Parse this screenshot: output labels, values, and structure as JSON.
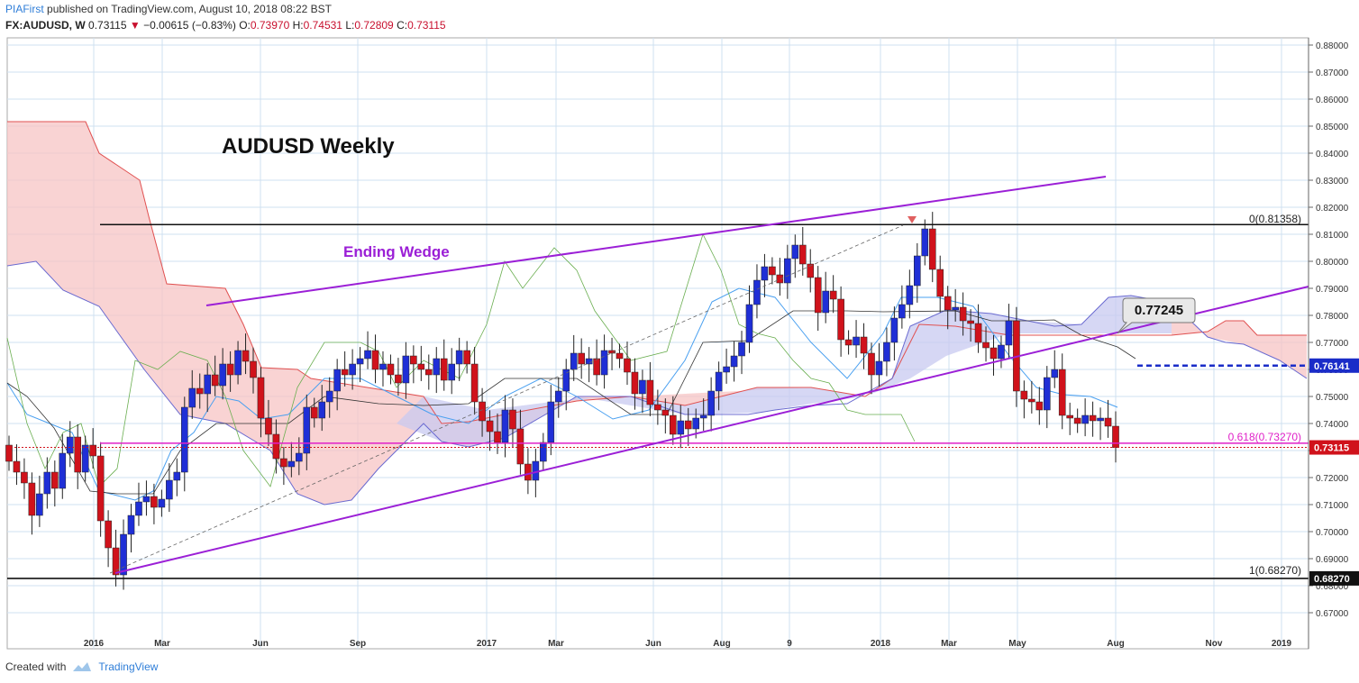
{
  "header": {
    "author": "PIAFirst",
    "published": "published on TradingView.com, August 10, 2018 08:22 BST",
    "symbol": "FX:AUDUSD, W",
    "last": "0.73115",
    "change": "−0.00615 (−0.83%)",
    "open_label": "O:",
    "open": "0.73970",
    "high_label": "H:",
    "high": "0.74531",
    "low_label": "L:",
    "low": "0.72809",
    "close_label": "C:",
    "close": "0.73115"
  },
  "footer": {
    "created_with": "Created with",
    "brand": "TradingView"
  },
  "colors": {
    "bull": "#1f2fd6",
    "bear": "#d0121b",
    "wedge": "#9b1fd6",
    "fib_pink": "#e020c8",
    "cloud_bear": "#f7c4c4",
    "cloud_bull": "#c8caf0",
    "grid": "#cfe0f0"
  },
  "chart_data": {
    "type": "candlestick",
    "title": "AUDUSD Weekly",
    "ylim": [
      0.665,
      0.885
    ],
    "y_ticks": [
      "0.88000",
      "0.87000",
      "0.86000",
      "0.85000",
      "0.84000",
      "0.83000",
      "0.82000",
      "0.81000",
      "0.80000",
      "0.79000",
      "0.78000",
      "0.77000",
      "0.76000",
      "0.75000",
      "0.74000",
      "0.73000",
      "0.72000",
      "0.71000",
      "0.70000",
      "0.69000",
      "0.68000",
      "0.67000"
    ],
    "x_ticks": [
      "2016",
      "Mar",
      "Jun",
      "Sep",
      "2017",
      "Mar",
      "Jun",
      "Aug",
      "9",
      "2018",
      "Mar",
      "May",
      "Aug",
      "Nov",
      "2019"
    ],
    "annotations": {
      "wedge_label": "Ending Wedge",
      "callout": "0.77245",
      "fib_top": "0(0.81358)",
      "fib_618": "0.618(0.73270)",
      "fib_bottom": "1(0.68270)",
      "price_tag": "0.73115",
      "blue_tag": "0.76141",
      "bottom_tag": "0.68270"
    },
    "levels": {
      "fib_top": 0.81358,
      "fib_618": 0.7327,
      "fib_bottom": 0.6827,
      "last": 0.73115,
      "blue_dashed": 0.76141,
      "callout": 0.77245
    }
  }
}
